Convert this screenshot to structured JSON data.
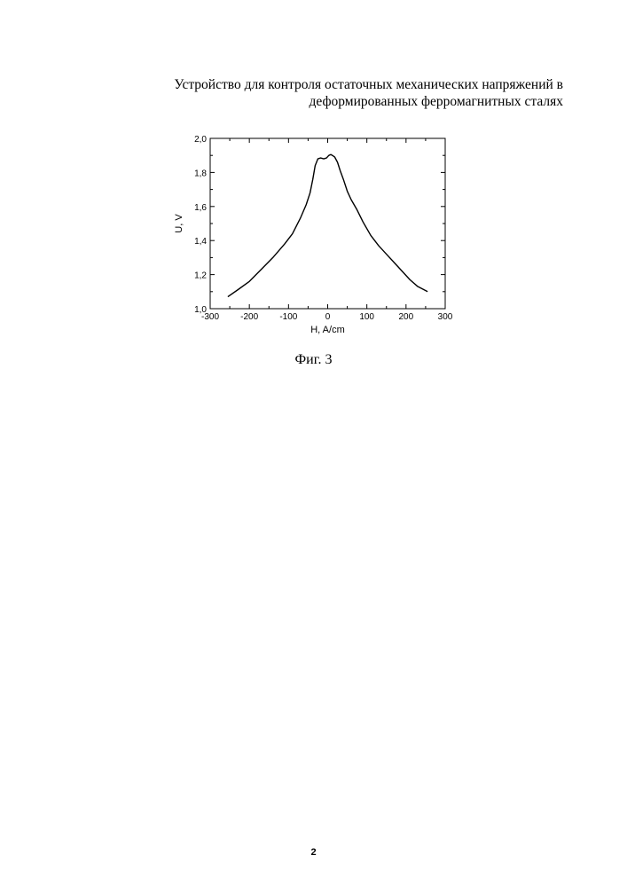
{
  "document": {
    "title_line1": "Устройство для контроля остаточных механических напряжений в",
    "title_line2": "деформированных ферромагнитных сталях",
    "caption": "Фиг. 3",
    "page_number": "2"
  },
  "chart_data": {
    "type": "line",
    "title": "",
    "xlabel": "H, A/cm",
    "ylabel": "U, V",
    "xlim": [
      -300,
      300
    ],
    "ylim": [
      1.0,
      2.0
    ],
    "x_ticks": [
      -300,
      -200,
      -100,
      0,
      100,
      200,
      300
    ],
    "x_tick_labels": [
      "-300",
      "-200",
      "-100",
      "0",
      "100",
      "200",
      "300"
    ],
    "y_ticks": [
      1.0,
      1.2,
      1.4,
      1.6,
      1.8,
      2.0
    ],
    "y_tick_labels": [
      "1,0",
      "1,2",
      "1,4",
      "1,6",
      "1,8",
      "2,0"
    ],
    "grid": false,
    "series": [
      {
        "x": [
          -255,
          -230,
          -200,
          -170,
          -140,
          -110,
          -90,
          -70,
          -55,
          -45,
          -38,
          -32,
          -25,
          -18,
          -10,
          -3,
          3,
          8,
          12,
          18,
          25,
          32,
          40,
          50,
          60,
          75,
          90,
          110,
          130,
          150,
          170,
          190,
          210,
          230,
          255
        ],
        "y": [
          1.07,
          1.11,
          1.16,
          1.23,
          1.3,
          1.38,
          1.44,
          1.53,
          1.61,
          1.68,
          1.76,
          1.84,
          1.88,
          1.885,
          1.88,
          1.885,
          1.9,
          1.905,
          1.9,
          1.89,
          1.86,
          1.81,
          1.76,
          1.69,
          1.64,
          1.58,
          1.51,
          1.43,
          1.37,
          1.32,
          1.27,
          1.22,
          1.17,
          1.13,
          1.1
        ]
      }
    ]
  }
}
